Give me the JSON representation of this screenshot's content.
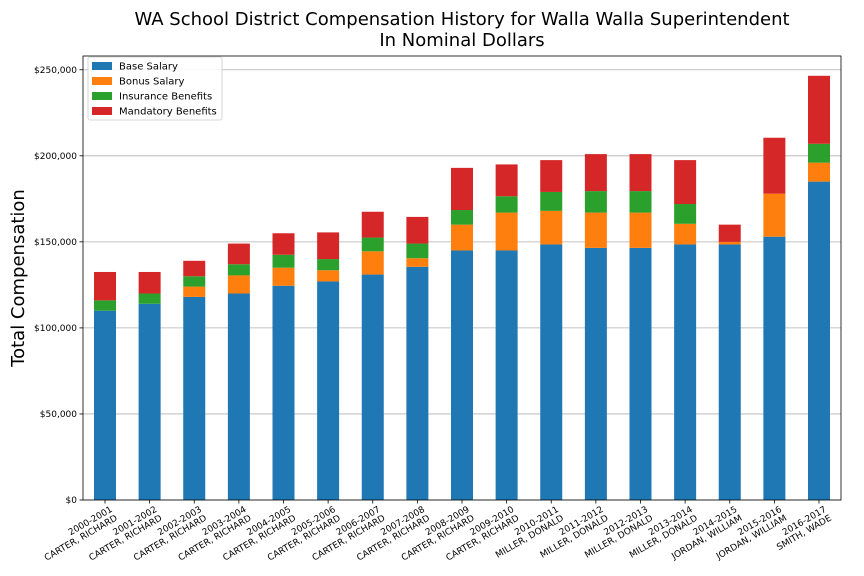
{
  "chart_data": {
    "type": "bar",
    "stacked": true,
    "title": "WA School District Compensation History for Walla Walla Superintendent",
    "subtitle": "In Nominal Dollars",
    "xlabel": "",
    "ylabel": "Total Compensation",
    "ylim": [
      0,
      258000
    ],
    "yticks": [
      0,
      50000,
      100000,
      150000,
      200000,
      250000
    ],
    "ytick_labels": [
      "$0",
      "$50,000",
      "$100,000",
      "$150,000",
      "$200,000",
      "$250,000"
    ],
    "grid": "horizontal",
    "legend_position": "top-left",
    "categories": [
      [
        "2000-2001",
        "CARTER, RICHARD"
      ],
      [
        "2001-2002",
        "CARTER, RICHARD"
      ],
      [
        "2002-2003",
        "CARTER, RICHARD"
      ],
      [
        "2003-2004",
        "CARTER, RICHARD"
      ],
      [
        "2004-2005",
        "CARTER, RICHARD"
      ],
      [
        "2005-2006",
        "CARTER, RICHARD"
      ],
      [
        "2006-2007",
        "CARTER, RICHARD"
      ],
      [
        "2007-2008",
        "CARTER, RICHARD"
      ],
      [
        "2008-2009",
        "CARTER, RICHARD"
      ],
      [
        "2009-2010",
        "CARTER, RICHARD"
      ],
      [
        "2010-2011",
        "MILLER, DONALD"
      ],
      [
        "2011-2012",
        "MILLER, DONALD"
      ],
      [
        "2012-2013",
        "MILLER, DONALD"
      ],
      [
        "2013-2014",
        "MILLER, DONALD"
      ],
      [
        "2014-2015",
        "JORDAN, WILLIAM"
      ],
      [
        "2015-2016",
        "JORDAN, WILLIAM"
      ],
      [
        "2016-2017",
        "SMITH, WADE"
      ]
    ],
    "series": [
      {
        "name": "Base Salary",
        "color": "#1f77b4",
        "values": [
          110000,
          114000,
          118000,
          120000,
          124500,
          127000,
          131000,
          135500,
          145000,
          145000,
          148500,
          146500,
          146500,
          148500,
          148500,
          153000,
          185000
        ]
      },
      {
        "name": "Bonus Salary",
        "color": "#ff7f0e",
        "values": [
          0,
          0,
          6000,
          10500,
          10500,
          6500,
          13500,
          5000,
          15000,
          22000,
          19500,
          20500,
          20500,
          12000,
          1500,
          25000,
          11000
        ]
      },
      {
        "name": "Insurance Benefits",
        "color": "#2ca02c",
        "values": [
          6000,
          6000,
          6000,
          6500,
          7500,
          6500,
          8000,
          8500,
          8500,
          9500,
          11000,
          12500,
          12500,
          11500,
          0,
          0,
          11000
        ]
      },
      {
        "name": "Mandatory Benefits",
        "color": "#d62728",
        "values": [
          16500,
          12500,
          9000,
          12000,
          12500,
          15500,
          15000,
          15500,
          24500,
          18500,
          18500,
          21500,
          21500,
          25500,
          10000,
          32500,
          39500
        ]
      }
    ]
  }
}
